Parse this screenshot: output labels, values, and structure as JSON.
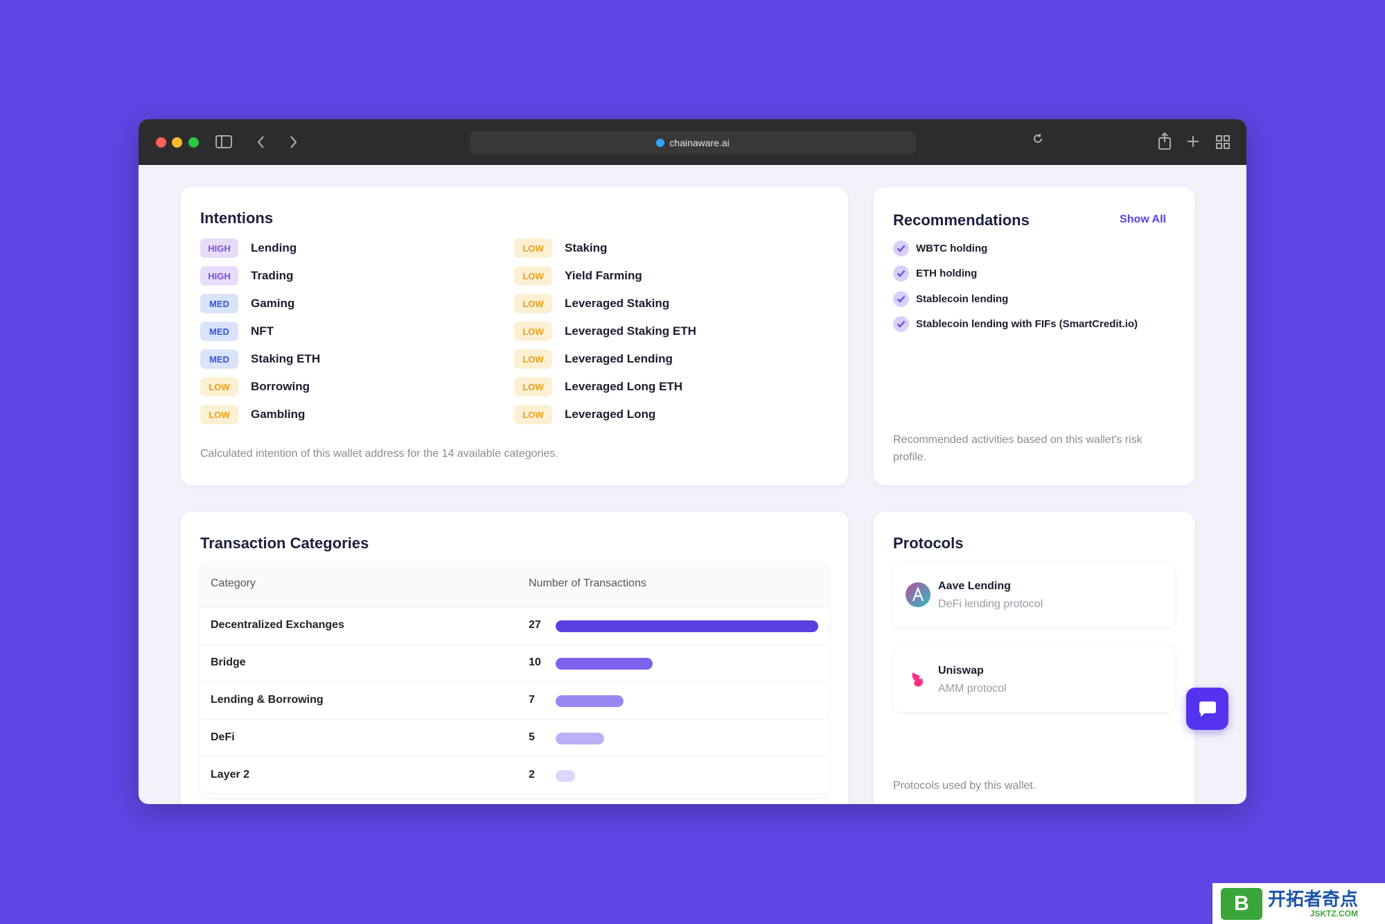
{
  "browser": {
    "url": "chainaware.ai"
  },
  "intentions": {
    "title": "Intentions",
    "items": [
      {
        "level": "HIGH",
        "label": "Lending"
      },
      {
        "level": "HIGH",
        "label": "Trading"
      },
      {
        "level": "MED",
        "label": "Gaming"
      },
      {
        "level": "MED",
        "label": "NFT"
      },
      {
        "level": "MED",
        "label": "Staking ETH"
      },
      {
        "level": "LOW",
        "label": "Borrowing"
      },
      {
        "level": "LOW",
        "label": "Gambling"
      },
      {
        "level": "LOW",
        "label": "Staking"
      },
      {
        "level": "LOW",
        "label": "Yield Farming"
      },
      {
        "level": "LOW",
        "label": "Leveraged Staking"
      },
      {
        "level": "LOW",
        "label": "Leveraged Staking ETH"
      },
      {
        "level": "LOW",
        "label": "Leveraged Lending"
      },
      {
        "level": "LOW",
        "label": "Leveraged Long ETH"
      },
      {
        "level": "LOW",
        "label": "Leveraged Long"
      }
    ],
    "footnote": "Calculated intention of this wallet address for the 14 available categories."
  },
  "recommendations": {
    "title": "Recommendations",
    "action": "Show All",
    "items": [
      "WBTC holding",
      "ETH holding",
      "Stablecoin lending",
      "Stablecoin lending with FIFs (SmartCredit.io)"
    ],
    "footnote": "Recommended activities based on this wallet's risk profile."
  },
  "transactions": {
    "title": "Transaction Categories",
    "columns": [
      "Category",
      "Number of Transactions"
    ],
    "rows": [
      {
        "category": "Decentralized Exchanges",
        "count": 27
      },
      {
        "category": "Bridge",
        "count": 10
      },
      {
        "category": "Lending & Borrowing",
        "count": 7
      },
      {
        "category": "DeFi",
        "count": 5
      },
      {
        "category": "Layer 2",
        "count": 2
      }
    ]
  },
  "protocols": {
    "title": "Protocols",
    "items": [
      {
        "name": "Aave Lending",
        "description": "DeFi lending protocol"
      },
      {
        "name": "Uniswap",
        "description": "AMM protocol"
      }
    ],
    "footnote": "Protocols used by this wallet."
  },
  "watermark": {
    "text": "开拓者奇点",
    "site": "JSKTZ.COM"
  }
}
